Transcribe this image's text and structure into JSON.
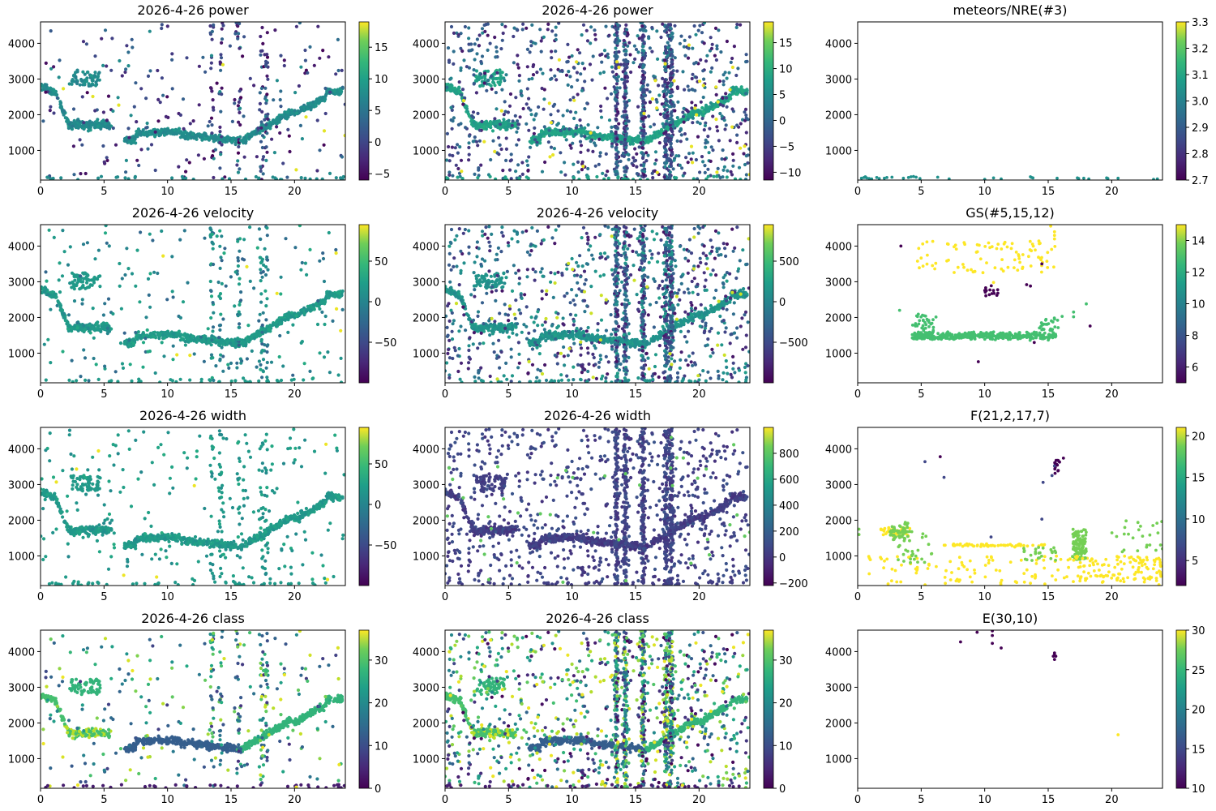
{
  "figure": {
    "colormap": "viridis",
    "x_axis": {
      "range": [
        0,
        24
      ],
      "ticks": [
        0,
        5,
        10,
        15,
        20
      ]
    },
    "y_axis": {
      "range": [
        170,
        4600
      ],
      "ticks": [
        1000,
        2000,
        3000,
        4000
      ]
    }
  },
  "chart_data": [
    {
      "type": "scatter",
      "title": "2026-4-26 power",
      "grid": false,
      "xlim": [
        0,
        24
      ],
      "ylim": [
        170,
        4600
      ],
      "x_ticks": [
        0,
        5,
        10,
        15,
        20
      ],
      "y_ticks": [
        1000,
        2000,
        3000,
        4000
      ],
      "colorbar": {
        "range": [
          -6,
          19
        ],
        "ticks": [
          -5,
          0,
          5,
          10,
          15
        ],
        "tick_labels": [
          "−5",
          "0",
          "5",
          "10",
          "15"
        ]
      },
      "pattern": "trail",
      "density": "sparse",
      "band_value": 6,
      "scatter_value_range": [
        -6,
        3
      ],
      "outlier_value": 18
    },
    {
      "type": "scatter",
      "title": "2026-4-26 power",
      "grid": false,
      "xlim": [
        0,
        24
      ],
      "ylim": [
        170,
        4600
      ],
      "x_ticks": [
        0,
        5,
        10,
        15,
        20
      ],
      "y_ticks": [
        1000,
        2000,
        3000,
        4000
      ],
      "colorbar": {
        "range": [
          -11.5,
          19
        ],
        "ticks": [
          -10,
          -5,
          0,
          5,
          10,
          15
        ],
        "tick_labels": [
          "−10",
          "−5",
          "0",
          "5",
          "10",
          "15"
        ]
      },
      "pattern": "trail",
      "density": "dense",
      "band_value": 6,
      "scatter_value_range": [
        -10,
        3
      ],
      "outlier_value": 18
    },
    {
      "type": "scatter",
      "title": "meteors/NRE(#3)",
      "grid": false,
      "xlim": [
        0,
        24
      ],
      "ylim": [
        170,
        4600
      ],
      "x_ticks": [
        0,
        5,
        10,
        15,
        20
      ],
      "y_ticks": [
        1000,
        2000,
        3000,
        4000
      ],
      "colorbar": {
        "range": [
          2.7,
          3.3
        ],
        "ticks": [
          2.7,
          2.8,
          2.9,
          3.0,
          3.1,
          3.2,
          3.3
        ],
        "tick_labels": [
          "2.7",
          "2.8",
          "2.9",
          "3.0",
          "3.1",
          "3.2",
          "3.3"
        ]
      },
      "pattern": "points",
      "value": 3,
      "points": [
        [
          0.3,
          220
        ],
        [
          0.5,
          240
        ],
        [
          0.6,
          260
        ],
        [
          0.7,
          230
        ],
        [
          0.9,
          210
        ],
        [
          1.1,
          200
        ],
        [
          1.5,
          240
        ],
        [
          1.7,
          210
        ],
        [
          2.1,
          220
        ],
        [
          2.3,
          240
        ],
        [
          2.7,
          250
        ],
        [
          3.6,
          220
        ],
        [
          4.0,
          240
        ],
        [
          4.2,
          260
        ],
        [
          4.4,
          270
        ],
        [
          4.6,
          250
        ],
        [
          4.9,
          210
        ],
        [
          6.3,
          250
        ],
        [
          7.2,
          200
        ],
        [
          10.0,
          190
        ],
        [
          10.7,
          230
        ],
        [
          11.3,
          200
        ],
        [
          13.6,
          260
        ],
        [
          13.7,
          240
        ],
        [
          13.8,
          230
        ],
        [
          15.7,
          220
        ],
        [
          17.3,
          230
        ],
        [
          17.4,
          210
        ],
        [
          17.8,
          220
        ],
        [
          18.2,
          200
        ],
        [
          19.6,
          230
        ],
        [
          19.7,
          210
        ],
        [
          20.5,
          220
        ],
        [
          23.3,
          190
        ],
        [
          23.6,
          200
        ]
      ]
    },
    {
      "type": "scatter",
      "title": "2026-4-26 velocity",
      "grid": false,
      "xlim": [
        0,
        24
      ],
      "ylim": [
        170,
        4600
      ],
      "x_ticks": [
        0,
        5,
        10,
        15,
        20
      ],
      "y_ticks": [
        1000,
        2000,
        3000,
        4000
      ],
      "colorbar": {
        "range": [
          -100,
          95
        ],
        "ticks": [
          -50,
          0,
          50
        ],
        "tick_labels": [
          "−50",
          "0",
          "50"
        ]
      },
      "pattern": "trail",
      "density": "sparse",
      "band_value": 5,
      "scatter_value_range": [
        -40,
        20
      ],
      "outlier_value": 90
    },
    {
      "type": "scatter",
      "title": "2026-4-26 velocity",
      "grid": false,
      "xlim": [
        0,
        24
      ],
      "ylim": [
        170,
        4600
      ],
      "x_ticks": [
        0,
        5,
        10,
        15,
        20
      ],
      "y_ticks": [
        1000,
        2000,
        3000,
        4000
      ],
      "colorbar": {
        "range": [
          -1000,
          950
        ],
        "ticks": [
          -500,
          0,
          500
        ],
        "tick_labels": [
          "−500",
          "0",
          "500"
        ]
      },
      "pattern": "trail",
      "density": "dense",
      "band_value": 0,
      "scatter_value_range": [
        -900,
        100
      ],
      "outlier_value": 800
    },
    {
      "type": "scatter",
      "title": "GS(#5,15,12)",
      "grid": false,
      "xlim": [
        0,
        24
      ],
      "ylim": [
        170,
        4600
      ],
      "x_ticks": [
        0,
        5,
        10,
        15,
        20
      ],
      "y_ticks": [
        1000,
        2000,
        3000,
        4000
      ],
      "colorbar": {
        "range": [
          5,
          15
        ],
        "ticks": [
          6,
          8,
          10,
          12,
          14
        ],
        "tick_labels": [
          "6",
          "8",
          "10",
          "12",
          "14"
        ]
      },
      "pattern": "clusters",
      "clusters": [
        {
          "value": 12,
          "count": 420,
          "shape": "band",
          "x": [
            4.3,
            15.7
          ],
          "y_center": 1480,
          "y_spread": 140
        },
        {
          "value": 12,
          "count": 40,
          "shape": "blob",
          "x": [
            4.3,
            6.2
          ],
          "y": [
            1550,
            2100
          ]
        },
        {
          "value": 12,
          "count": 25,
          "shape": "blob",
          "x": [
            14.2,
            15.8
          ],
          "y": [
            1600,
            2000
          ]
        },
        {
          "value": 15,
          "count": 90,
          "shape": "blob",
          "x": [
            4.5,
            15.6
          ],
          "y": [
            3250,
            4150
          ]
        },
        {
          "value": 5,
          "count": 14,
          "shape": "blob",
          "x": [
            10.0,
            11.2
          ],
          "y": [
            2600,
            2900
          ]
        }
      ],
      "points": [
        [
          3.3,
          2200
        ],
        [
          17.0,
          2150
        ],
        [
          17.0,
          2020
        ],
        [
          18.0,
          2380
        ],
        [
          16.1,
          2030
        ],
        [
          15.2,
          4560
        ],
        [
          15.5,
          4400
        ],
        [
          15.5,
          4300
        ],
        [
          15.5,
          4200
        ]
      ],
      "outliers": [
        [
          3.4,
          4000,
          5
        ],
        [
          14.5,
          3500,
          5
        ],
        [
          13.3,
          2920,
          5
        ],
        [
          13.6,
          2880,
          5
        ],
        [
          13.9,
          1300,
          5
        ],
        [
          9.5,
          760,
          5
        ],
        [
          18.3,
          1760,
          5
        ],
        [
          10.7,
          2980,
          15
        ]
      ]
    },
    {
      "type": "scatter",
      "title": "2026-4-26 width",
      "grid": false,
      "xlim": [
        0,
        24
      ],
      "ylim": [
        170,
        4600
      ],
      "x_ticks": [
        0,
        5,
        10,
        15,
        20
      ],
      "y_ticks": [
        1000,
        2000,
        3000,
        4000
      ],
      "colorbar": {
        "range": [
          -100,
          95
        ],
        "ticks": [
          -50,
          0,
          50
        ],
        "tick_labels": [
          "−50",
          "0",
          "50"
        ]
      },
      "pattern": "trail",
      "density": "sparse",
      "band_value": 5,
      "scatter_value_range": [
        -10,
        20
      ],
      "outlier_value": 90
    },
    {
      "type": "scatter",
      "title": "2026-4-26 width",
      "grid": false,
      "xlim": [
        0,
        24
      ],
      "ylim": [
        170,
        4600
      ],
      "x_ticks": [
        0,
        5,
        10,
        15,
        20
      ],
      "y_ticks": [
        1000,
        2000,
        3000,
        4000
      ],
      "colorbar": {
        "range": [
          -220,
          1000
        ],
        "ticks": [
          -200,
          0,
          200,
          400,
          600,
          800
        ],
        "tick_labels": [
          "−200",
          "0",
          "200",
          "400",
          "600",
          "800"
        ]
      },
      "pattern": "trail",
      "density": "dense",
      "band_value": 0,
      "scatter_value_range": [
        -50,
        100
      ],
      "outlier_value": 700
    },
    {
      "type": "scatter",
      "title": "F(21,2,17,7)",
      "grid": false,
      "xlim": [
        0,
        24
      ],
      "ylim": [
        170,
        4600
      ],
      "x_ticks": [
        0,
        5,
        10,
        15,
        20
      ],
      "y_ticks": [
        1000,
        2000,
        3000,
        4000
      ],
      "colorbar": {
        "range": [
          2,
          21
        ],
        "ticks": [
          5,
          10,
          15,
          20
        ],
        "tick_labels": [
          "5",
          "10",
          "15",
          "20"
        ]
      },
      "pattern": "clusters",
      "clusters": [
        {
          "value": 21,
          "count": 40,
          "shape": "blob",
          "x": [
            1.8,
            4.2
          ],
          "y": [
            1550,
            1800
          ]
        },
        {
          "value": 17,
          "count": 45,
          "shape": "blob",
          "x": [
            2.5,
            4.0
          ],
          "y": [
            1450,
            1950
          ]
        },
        {
          "value": 21,
          "count": 60,
          "shape": "band",
          "x": [
            6.8,
            14.8
          ],
          "y_center": 1300,
          "y_spread": 60
        },
        {
          "value": 21,
          "count": 130,
          "shape": "blob",
          "x": [
            0.5,
            24.0
          ],
          "y": [
            180,
            1000
          ]
        },
        {
          "value": 17,
          "count": 30,
          "shape": "blob",
          "x": [
            3.0,
            6.0
          ],
          "y": [
            800,
            1700
          ]
        },
        {
          "value": 17,
          "count": 25,
          "shape": "blob",
          "x": [
            13.0,
            15.6
          ],
          "y": [
            850,
            1250
          ]
        },
        {
          "value": 17,
          "count": 110,
          "shape": "blob",
          "x": [
            16.9,
            18.0
          ],
          "y": [
            900,
            1750
          ]
        },
        {
          "value": 21,
          "count": 90,
          "shape": "blob",
          "x": [
            17.0,
            24.0
          ],
          "y": [
            300,
            1000
          ]
        },
        {
          "value": 17,
          "count": 25,
          "shape": "blob",
          "x": [
            20.0,
            24.0
          ],
          "y": [
            1100,
            2000
          ]
        },
        {
          "value": 2,
          "count": 14,
          "shape": "blob",
          "x": [
            15.5,
            15.9
          ],
          "y": [
            3300,
            3700
          ]
        }
      ],
      "points": [],
      "outliers": [
        [
          5.3,
          3640,
          6
        ],
        [
          6.5,
          3780,
          2
        ],
        [
          6.8,
          3200,
          6
        ],
        [
          14.6,
          3060,
          6
        ],
        [
          15.3,
          3250,
          6
        ],
        [
          15.5,
          3520,
          6
        ],
        [
          14.5,
          2030,
          6
        ],
        [
          10.5,
          1530,
          6
        ],
        [
          16.2,
          3740,
          2
        ],
        [
          0.1,
          1750,
          17
        ],
        [
          0.1,
          1600,
          17
        ]
      ]
    },
    {
      "type": "scatter",
      "title": "2026-4-26 class",
      "grid": false,
      "xlim": [
        0,
        24
      ],
      "ylim": [
        170,
        4600
      ],
      "x_ticks": [
        0,
        5,
        10,
        15,
        20
      ],
      "y_ticks": [
        1000,
        2000,
        3000,
        4000
      ],
      "colorbar": {
        "range": [
          0,
          37
        ],
        "ticks": [
          0,
          10,
          20,
          30
        ],
        "tick_labels": [
          "0",
          "10",
          "20",
          "30"
        ]
      },
      "pattern": "trail",
      "density": "sparse",
      "band_value": 12,
      "scatter_value_range": [
        5,
        35
      ],
      "outlier_value": 36,
      "class_mode": true
    },
    {
      "type": "scatter",
      "title": "2026-4-26 class",
      "grid": false,
      "xlim": [
        0,
        24
      ],
      "ylim": [
        170,
        4600
      ],
      "x_ticks": [
        0,
        5,
        10,
        15,
        20
      ],
      "y_ticks": [
        1000,
        2000,
        3000,
        4000
      ],
      "colorbar": {
        "range": [
          0,
          37
        ],
        "ticks": [
          0,
          10,
          20,
          30
        ],
        "tick_labels": [
          "0",
          "10",
          "20",
          "30"
        ]
      },
      "pattern": "trail",
      "density": "dense",
      "band_value": 12,
      "scatter_value_range": [
        0,
        36
      ],
      "outlier_value": 36,
      "class_mode": true
    },
    {
      "type": "scatter",
      "title": "E(30,10)",
      "grid": false,
      "xlim": [
        0,
        24
      ],
      "ylim": [
        170,
        4600
      ],
      "x_ticks": [
        0,
        5,
        10,
        15,
        20
      ],
      "y_ticks": [
        1000,
        2000,
        3000,
        4000
      ],
      "colorbar": {
        "range": [
          10,
          30
        ],
        "ticks": [
          10,
          15,
          20,
          25,
          30
        ],
        "tick_labels": [
          "10",
          "15",
          "20",
          "25",
          "30"
        ]
      },
      "pattern": "points",
      "value": 10,
      "points": [
        [
          8.1,
          4270
        ],
        [
          9.4,
          4540
        ],
        [
          10.6,
          4580
        ],
        [
          10.6,
          4450
        ],
        [
          10.6,
          4230
        ],
        [
          11.3,
          4100
        ],
        [
          15.5,
          3960
        ],
        [
          15.5,
          3900
        ],
        [
          15.6,
          3870
        ],
        [
          15.4,
          3870
        ],
        [
          15.5,
          3780
        ]
      ],
      "outliers": [
        [
          20.5,
          1670,
          30
        ]
      ]
    }
  ]
}
